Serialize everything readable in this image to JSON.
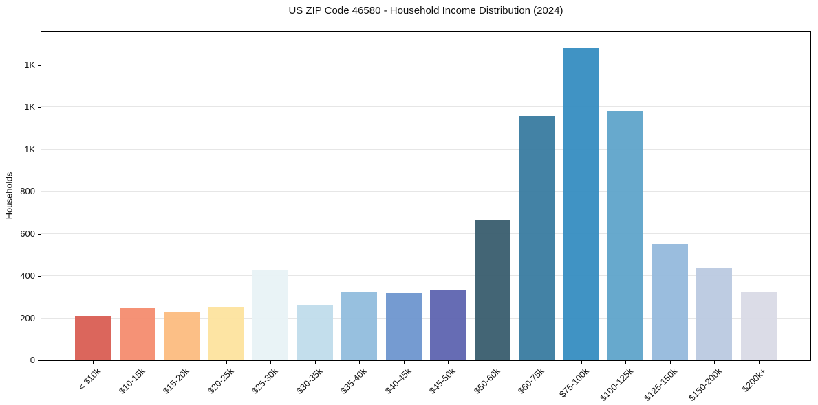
{
  "chart_data": {
    "type": "bar",
    "title": "US ZIP Code 46580 - Household Income Distribution (2024)",
    "xlabel": "",
    "ylabel": "Households",
    "categories": [
      "< $10k",
      "$10-15k",
      "$15-20k",
      "$20-25k",
      "$25-30k",
      "$30-35k",
      "$35-40k",
      "$40-45k",
      "$45-50k",
      "$50-60k",
      "$60-75k",
      "$75-100k",
      "$100-125k",
      "$125-150k",
      "$150-200k",
      "$200k+"
    ],
    "values": [
      210,
      247,
      230,
      255,
      425,
      265,
      323,
      320,
      334,
      665,
      1158,
      1480,
      1185,
      549,
      440,
      325
    ],
    "bar_colors": [
      "#d85a50",
      "#f48a6c",
      "#fcba7d",
      "#fde29c",
      "#e7f2f5",
      "#bedceb",
      "#8fbbdd",
      "#6b93cd",
      "#5a61ae",
      "#35596b",
      "#35789e",
      "#328bbf",
      "#5ba3c9",
      "#92b8db",
      "#b9c8e0",
      "#d8d9e5"
    ],
    "ylim": [
      0,
      1558
    ],
    "yticks": [
      0,
      200,
      400,
      600,
      800,
      1000,
      1200,
      1400
    ],
    "ytick_labels": [
      "0",
      "200",
      "400",
      "600",
      "800",
      "1K",
      "1K",
      "1K"
    ],
    "grid": "horizontal-light-gray",
    "legend": "none",
    "background": "#ffffff",
    "spine_color": "#000000",
    "gridline_color": "#e6e6e6"
  }
}
